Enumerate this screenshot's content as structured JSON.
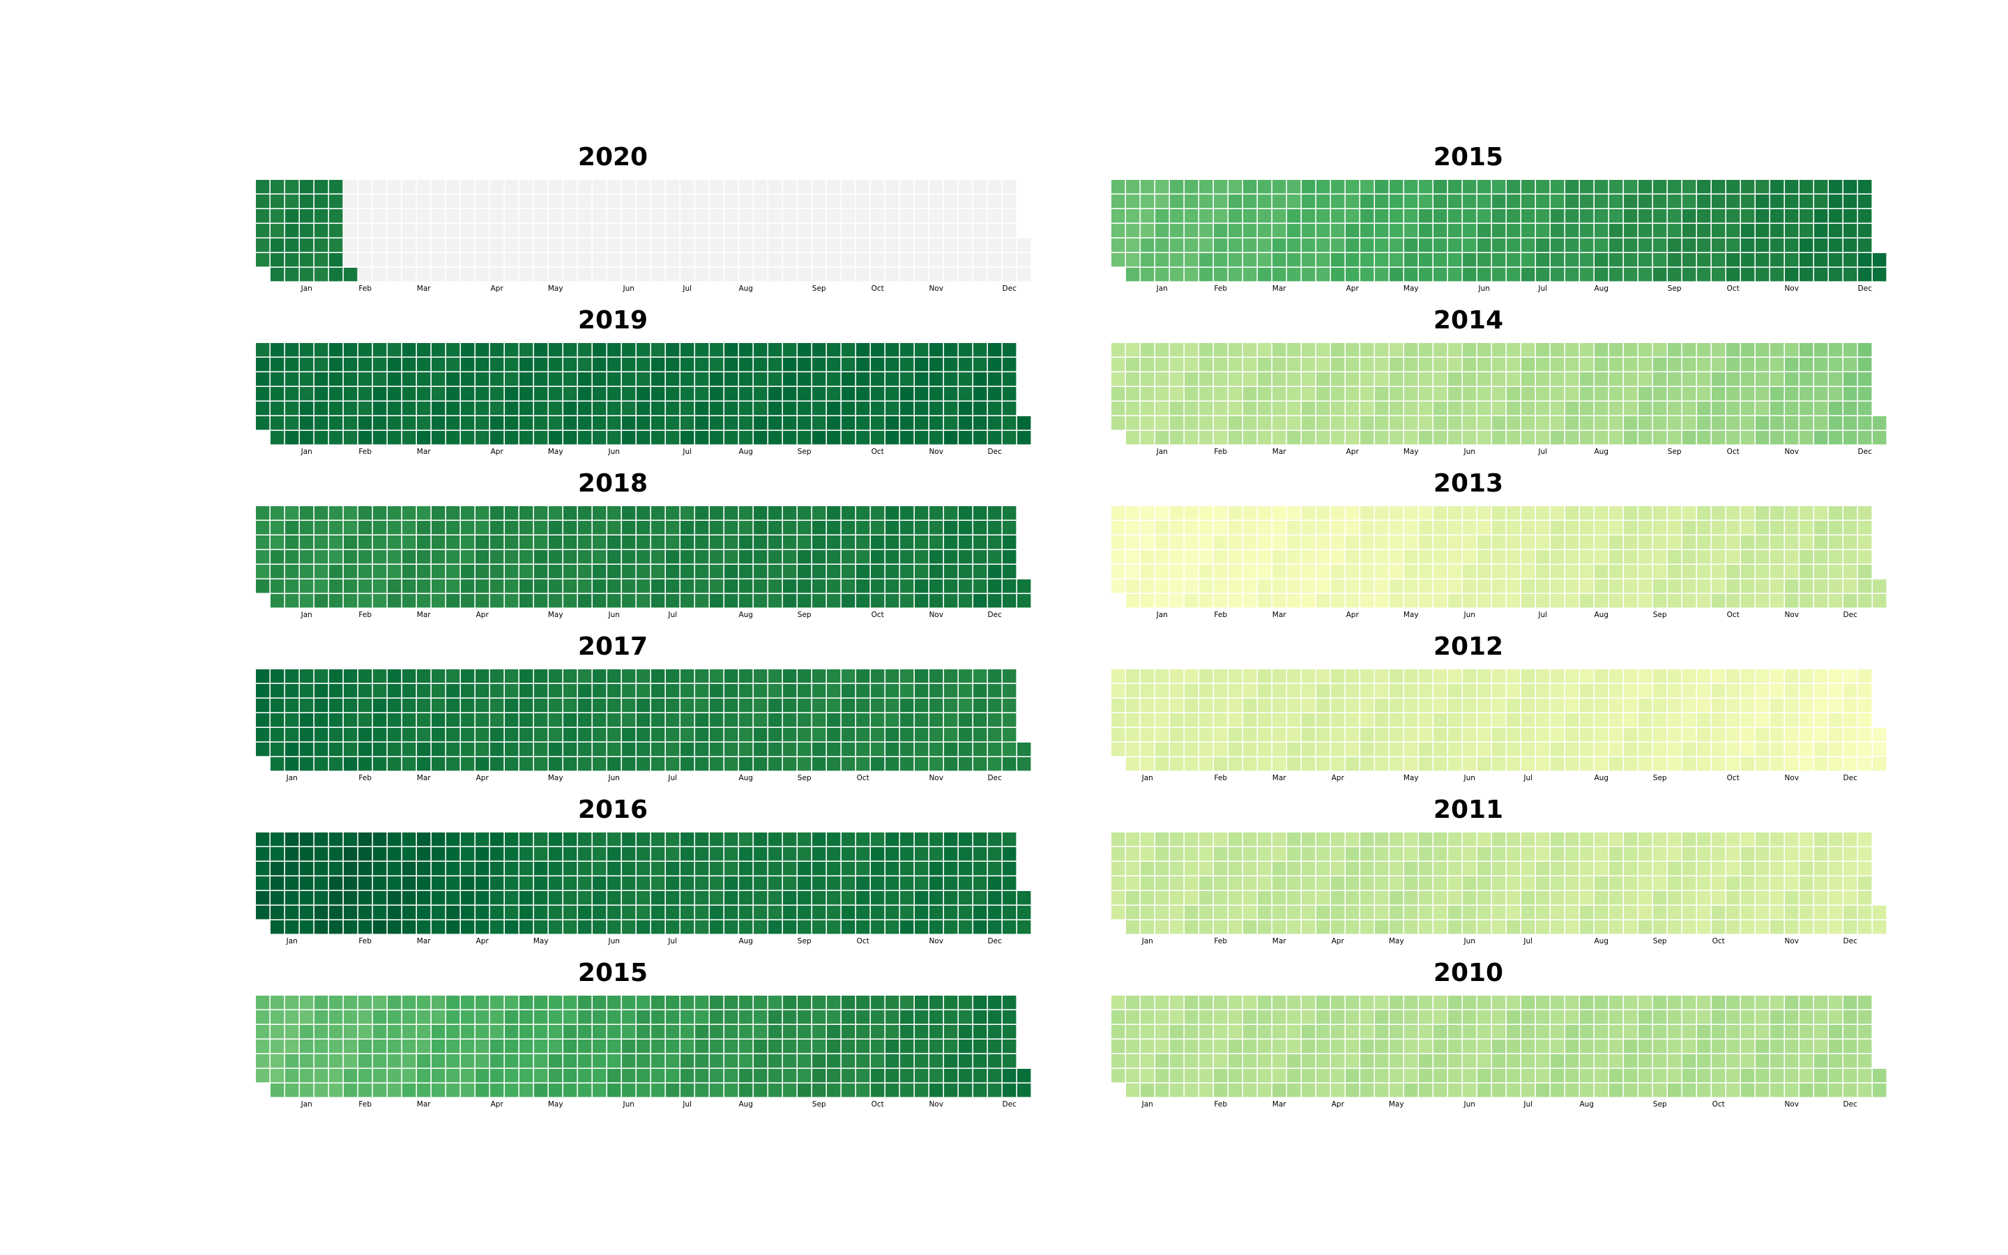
{
  "chart_data": [
    {
      "type": "heatmap",
      "title": "2020",
      "week_range": [
        0,
        52
      ],
      "start_weekday": 1,
      "days": 366,
      "filled_until_day": 42,
      "weekly_levels": [
        0.78,
        0.8,
        0.82,
        0.83,
        0.83,
        0.82,
        0.82
      ],
      "month_labels": [
        "Jan",
        "Feb",
        "Mar",
        "Apr",
        "May",
        "Jun",
        "Jul",
        "Aug",
        "Sep",
        "Oct",
        "Nov",
        "Dec"
      ],
      "month_label_weeks": [
        3,
        7,
        11,
        16,
        20,
        25,
        29,
        33,
        38,
        42,
        46,
        51
      ]
    },
    {
      "type": "heatmap",
      "title": "2015",
      "week_range": [
        0,
        52
      ],
      "start_weekday": 1,
      "days": 365,
      "weekly_levels": [
        0.53,
        0.55,
        0.57,
        0.59,
        0.61,
        0.63,
        0.65,
        0.67,
        0.69,
        0.71,
        0.73,
        0.75,
        0.78,
        0.8,
        0.83
      ],
      "month_labels": [
        "Jan",
        "Feb",
        "Mar",
        "Apr",
        "May",
        "Jun",
        "Jul",
        "Aug",
        "Sep",
        "Oct",
        "Nov",
        "Dec"
      ],
      "month_label_weeks": [
        3,
        7,
        11,
        16,
        20,
        25,
        29,
        33,
        38,
        42,
        46,
        51
      ]
    },
    {
      "type": "heatmap",
      "title": "2019",
      "week_range": [
        0,
        52
      ],
      "start_weekday": 1,
      "days": 365,
      "weekly_levels": [
        0.84,
        0.84,
        0.84,
        0.84,
        0.84,
        0.85,
        0.85,
        0.85
      ],
      "month_labels": [
        "Jan",
        "Feb",
        "Mar",
        "Apr",
        "May",
        "Jun",
        "Jul",
        "Aug",
        "Sep",
        "Oct",
        "Nov",
        "Dec"
      ],
      "month_label_weeks": [
        3,
        7,
        11,
        16,
        20,
        24,
        29,
        33,
        37,
        42,
        46,
        50
      ]
    },
    {
      "type": "heatmap",
      "title": "2014",
      "week_range": [
        0,
        52
      ],
      "start_weekday": 1,
      "days": 365,
      "weekly_levels": [
        0.33,
        0.34,
        0.35,
        0.35,
        0.36,
        0.37,
        0.39,
        0.41,
        0.44,
        0.48
      ],
      "month_labels": [
        "Jan",
        "Feb",
        "Mar",
        "Apr",
        "May",
        "Jun",
        "Jul",
        "Aug",
        "Sep",
        "Oct",
        "Nov",
        "Dec"
      ],
      "month_label_weeks": [
        3,
        7,
        11,
        16,
        20,
        24,
        29,
        33,
        38,
        42,
        46,
        51
      ]
    },
    {
      "type": "heatmap",
      "title": "2018",
      "week_range": [
        0,
        52
      ],
      "start_weekday": 1,
      "days": 365,
      "weekly_levels": [
        0.72,
        0.72,
        0.74,
        0.76,
        0.77,
        0.78,
        0.79,
        0.8,
        0.82
      ],
      "month_labels": [
        "Jan",
        "Feb",
        "Mar",
        "Apr",
        "May",
        "Jun",
        "Jul",
        "Aug",
        "Sep",
        "Oct",
        "Nov",
        "Dec"
      ],
      "month_label_weeks": [
        3,
        7,
        11,
        15,
        20,
        24,
        28,
        33,
        37,
        42,
        46,
        50
      ]
    },
    {
      "type": "heatmap",
      "title": "2013",
      "week_range": [
        0,
        52
      ],
      "start_weekday": 1,
      "days": 365,
      "weekly_levels": [
        0.12,
        0.13,
        0.14,
        0.16,
        0.2,
        0.24,
        0.26,
        0.28,
        0.3,
        0.31
      ],
      "month_labels": [
        "Jan",
        "Feb",
        "Mar",
        "Apr",
        "May",
        "Jun",
        "Jul",
        "Aug",
        "Sep",
        "Oct",
        "Nov",
        "Dec"
      ],
      "month_label_weeks": [
        3,
        7,
        11,
        16,
        20,
        24,
        29,
        33,
        37,
        42,
        46,
        50
      ]
    },
    {
      "type": "heatmap",
      "title": "2017",
      "week_range": [
        0,
        52
      ],
      "start_weekday": 1,
      "days": 365,
      "weekly_levels": [
        0.85,
        0.83,
        0.8,
        0.79,
        0.78,
        0.77,
        0.76,
        0.76,
        0.75
      ],
      "month_labels": [
        "Jan",
        "Feb",
        "Mar",
        "Apr",
        "May",
        "Jun",
        "Jul",
        "Aug",
        "Sep",
        "Oct",
        "Nov",
        "Dec"
      ],
      "month_label_weeks": [
        2,
        7,
        11,
        15,
        20,
        24,
        28,
        33,
        37,
        41,
        46,
        50
      ]
    },
    {
      "type": "heatmap",
      "title": "2012",
      "week_range": [
        0,
        52
      ],
      "start_weekday": 1,
      "days": 366,
      "weekly_levels": [
        0.22,
        0.24,
        0.25,
        0.24,
        0.22,
        0.2,
        0.18,
        0.15,
        0.12
      ],
      "month_labels": [
        "Jan",
        "Feb",
        "Mar",
        "Apr",
        "May",
        "Jun",
        "Jul",
        "Aug",
        "Sep",
        "Oct",
        "Nov",
        "Dec"
      ],
      "month_label_weeks": [
        2,
        7,
        11,
        15,
        20,
        24,
        28,
        33,
        37,
        42,
        46,
        50
      ]
    },
    {
      "type": "heatmap",
      "title": "2016",
      "week_range": [
        0,
        52
      ],
      "start_weekday": 1,
      "days": 366,
      "weekly_levels": [
        0.9,
        0.92,
        0.88,
        0.82,
        0.8,
        0.8,
        0.81,
        0.82,
        0.83
      ],
      "month_labels": [
        "Jan",
        "Feb",
        "Mar",
        "Apr",
        "May",
        "Jun",
        "Jul",
        "Aug",
        "Sep",
        "Oct",
        "Nov",
        "Dec"
      ],
      "month_label_weeks": [
        2,
        7,
        11,
        15,
        19,
        24,
        28,
        33,
        37,
        41,
        46,
        50
      ]
    },
    {
      "type": "heatmap",
      "title": "2011",
      "week_range": [
        0,
        52
      ],
      "start_weekday": 1,
      "days": 365,
      "weekly_levels": [
        0.3,
        0.31,
        0.32,
        0.33,
        0.31,
        0.29,
        0.28,
        0.27,
        0.26,
        0.25
      ],
      "month_labels": [
        "Jan",
        "Feb",
        "Mar",
        "Apr",
        "May",
        "Jun",
        "Jul",
        "Aug",
        "Sep",
        "Oct",
        "Nov",
        "Dec"
      ],
      "month_label_weeks": [
        2,
        7,
        11,
        15,
        19,
        24,
        28,
        33,
        37,
        41,
        46,
        50
      ]
    },
    {
      "type": "heatmap",
      "title": "2015",
      "week_range": [
        0,
        52
      ],
      "start_weekday": 1,
      "days": 365,
      "weekly_levels": [
        0.53,
        0.55,
        0.57,
        0.59,
        0.61,
        0.63,
        0.65,
        0.67,
        0.69,
        0.71,
        0.73,
        0.75,
        0.78,
        0.8,
        0.83
      ],
      "month_labels": [
        "Jan",
        "Feb",
        "Mar",
        "Apr",
        "May",
        "Jun",
        "Jul",
        "Aug",
        "Sep",
        "Oct",
        "Nov",
        "Dec"
      ],
      "month_label_weeks": [
        3,
        7,
        11,
        16,
        20,
        25,
        29,
        33,
        38,
        42,
        46,
        51
      ]
    },
    {
      "type": "heatmap",
      "title": "2010",
      "week_range": [
        0,
        52
      ],
      "start_weekday": 1,
      "days": 365,
      "weekly_levels": [
        0.34,
        0.35,
        0.36,
        0.36,
        0.37,
        0.37,
        0.37,
        0.38
      ],
      "month_labels": [
        "Jan",
        "Feb",
        "Mar",
        "Apr",
        "May",
        "Jun",
        "Jul",
        "Aug",
        "Sep",
        "Oct",
        "Nov",
        "Dec"
      ],
      "month_label_weeks": [
        2,
        7,
        11,
        15,
        19,
        24,
        28,
        32,
        37,
        41,
        46,
        50
      ]
    }
  ],
  "colors": {
    "empty_cell": "#f2f2f2",
    "grid_line": "#ffffff",
    "colormap": [
      "#ffffe5",
      "#f7fcb9",
      "#d9f0a3",
      "#addd8e",
      "#78c679",
      "#41ab5d",
      "#238443",
      "#006837",
      "#004529"
    ]
  }
}
